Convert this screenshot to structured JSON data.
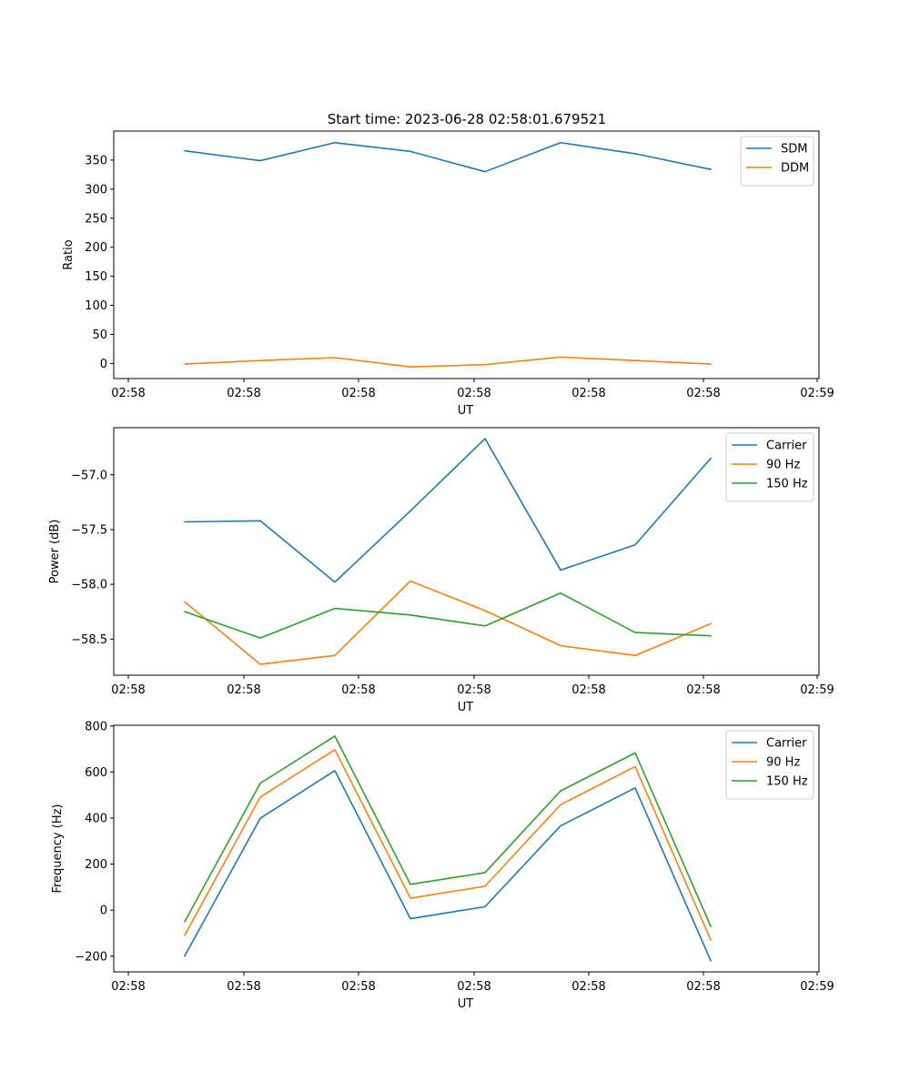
{
  "title": "Start time: 2023-06-28 02:58:01.679521",
  "colors": {
    "c0": "#1f77b4",
    "c1": "#ff7f0e",
    "c2": "#2ca02c"
  },
  "chart_data": [
    {
      "type": "line",
      "xlabel": "UT",
      "ylabel": "Ratio",
      "x_tick_labels": [
        "02:58",
        "02:58",
        "02:58",
        "02:58",
        "02:58",
        "02:58",
        "02:59"
      ],
      "ylim": [
        -26,
        400
      ],
      "y_ticks": [
        0,
        50,
        100,
        150,
        200,
        250,
        300,
        350
      ],
      "legend_position": "top-right",
      "series": [
        {
          "name": "SDM",
          "color": "#1f77b4",
          "values": [
            366,
            349,
            380,
            365,
            330,
            380,
            361,
            334
          ]
        },
        {
          "name": "DDM",
          "color": "#ff7f0e",
          "values": [
            -1,
            5,
            10,
            -6,
            -2,
            11,
            5,
            -1
          ]
        }
      ]
    },
    {
      "type": "line",
      "xlabel": "UT",
      "ylabel": "Power (dB)",
      "x_tick_labels": [
        "02:58",
        "02:58",
        "02:58",
        "02:58",
        "02:58",
        "02:58",
        "02:59"
      ],
      "ylim": [
        -58.83,
        -56.57
      ],
      "y_ticks": [
        -58.5,
        -58.0,
        -57.5,
        -57.0
      ],
      "y_tick_labels": [
        "−58.5",
        "−58.0",
        "−57.5",
        "−57.0"
      ],
      "legend_position": "top-right",
      "series": [
        {
          "name": "Carrier",
          "color": "#1f77b4",
          "values": [
            -57.43,
            -57.42,
            -57.98,
            -57.33,
            -56.67,
            -57.87,
            -57.64,
            -56.85
          ]
        },
        {
          "name": "90 Hz",
          "color": "#ff7f0e",
          "values": [
            -58.16,
            -58.73,
            -58.65,
            -57.97,
            -58.24,
            -58.56,
            -58.65,
            -58.36
          ]
        },
        {
          "name": "150 Hz",
          "color": "#2ca02c",
          "values": [
            -58.25,
            -58.49,
            -58.22,
            -58.28,
            -58.38,
            -58.08,
            -58.44,
            -58.47
          ]
        }
      ]
    },
    {
      "type": "line",
      "xlabel": "UT",
      "ylabel": "Frequency (Hz)",
      "x_tick_labels": [
        "02:58",
        "02:58",
        "02:58",
        "02:58",
        "02:58",
        "02:58",
        "02:59"
      ],
      "ylim": [
        -268,
        803
      ],
      "y_ticks": [
        -200,
        0,
        200,
        400,
        600,
        800
      ],
      "y_tick_labels": [
        "−200",
        "0",
        "200",
        "400",
        "600",
        "800"
      ],
      "legend_position": "top-right",
      "series": [
        {
          "name": "Carrier",
          "color": "#1f77b4",
          "values": [
            -199,
            399,
            606,
            -37,
            15,
            366,
            531,
            -219
          ]
        },
        {
          "name": "90 Hz",
          "color": "#ff7f0e",
          "values": [
            -109,
            491,
            697,
            52,
            104,
            458,
            624,
            -129
          ]
        },
        {
          "name": "150 Hz",
          "color": "#2ca02c",
          "values": [
            -50,
            551,
            756,
            112,
            163,
            518,
            683,
            -70
          ]
        }
      ]
    }
  ]
}
